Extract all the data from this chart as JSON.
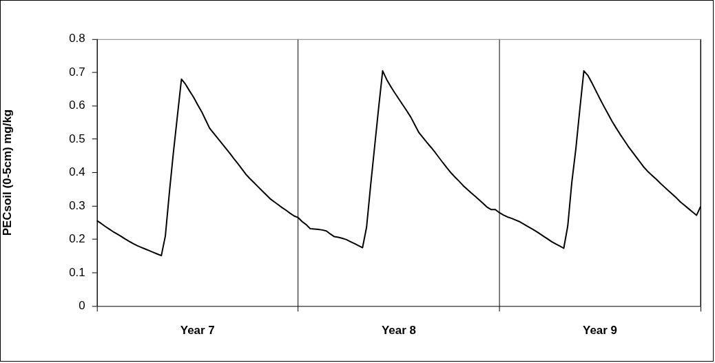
{
  "chart_data": {
    "type": "line",
    "ylabel": "PECsoil (0-5cm) mg/kg",
    "categories": [
      null,
      null,
      null,
      null,
      null,
      null,
      null,
      null,
      null,
      null,
      null,
      null,
      null,
      null,
      null,
      null,
      null,
      null,
      null,
      null,
      null,
      null,
      null,
      null,
      null,
      "Year 7",
      null,
      null,
      null,
      null,
      null,
      null,
      null,
      null,
      null,
      null,
      null,
      null,
      null,
      null,
      null,
      null,
      null,
      null,
      null,
      null,
      null,
      null,
      null,
      null,
      null,
      null,
      null,
      null,
      null,
      null,
      null,
      null,
      null,
      null,
      null,
      null,
      null,
      null,
      null,
      null,
      null,
      null,
      null,
      null,
      null,
      null,
      null,
      null,
      null,
      "Year 8",
      null,
      null,
      null,
      null,
      null,
      null,
      null,
      null,
      null,
      null,
      null,
      null,
      null,
      null,
      null,
      null,
      null,
      null,
      null,
      null,
      null,
      null,
      null,
      null,
      null,
      null,
      null,
      null,
      null,
      null,
      null,
      null,
      null,
      null,
      null,
      null,
      null,
      null,
      null,
      null,
      null,
      null,
      null,
      null,
      null,
      null,
      null,
      null,
      null,
      "Year 9",
      null,
      null,
      null,
      null,
      null,
      null,
      null,
      null,
      null,
      null,
      null,
      null,
      null,
      null,
      null,
      null,
      null,
      null,
      null,
      null,
      null,
      null,
      null,
      null,
      null
    ],
    "series": [
      {
        "color": "#000000",
        "values": [
          0.256,
          0.248,
          0.239,
          0.231,
          0.223,
          0.216,
          0.209,
          0.201,
          0.194,
          0.187,
          0.181,
          0.176,
          0.171,
          0.166,
          0.161,
          0.156,
          0.151,
          0.21,
          0.34,
          0.46,
          0.57,
          0.68,
          0.665,
          0.645,
          0.626,
          0.604,
          0.583,
          0.558,
          0.533,
          0.518,
          0.503,
          0.488,
          0.473,
          0.458,
          0.442,
          0.427,
          0.411,
          0.395,
          0.382,
          0.37,
          0.358,
          0.346,
          0.334,
          0.322,
          0.313,
          0.304,
          0.295,
          0.287,
          0.278,
          0.27,
          0.265,
          0.253,
          0.244,
          0.232,
          0.231,
          0.23,
          0.228,
          0.225,
          0.216,
          0.208,
          0.206,
          0.203,
          0.199,
          0.193,
          0.187,
          0.181,
          0.175,
          0.236,
          0.36,
          0.477,
          0.594,
          0.705,
          0.679,
          0.658,
          0.639,
          0.621,
          0.603,
          0.585,
          0.566,
          0.543,
          0.52,
          0.505,
          0.49,
          0.476,
          0.461,
          0.445,
          0.429,
          0.414,
          0.399,
          0.386,
          0.374,
          0.361,
          0.35,
          0.339,
          0.329,
          0.318,
          0.307,
          0.296,
          0.289,
          0.289,
          0.28,
          0.273,
          0.267,
          0.263,
          0.258,
          0.253,
          0.246,
          0.239,
          0.232,
          0.225,
          0.217,
          0.209,
          0.201,
          0.193,
          0.186,
          0.18,
          0.173,
          0.24,
          0.37,
          0.47,
          0.59,
          0.705,
          0.691,
          0.669,
          0.645,
          0.621,
          0.598,
          0.576,
          0.554,
          0.534,
          0.515,
          0.497,
          0.479,
          0.463,
          0.447,
          0.431,
          0.415,
          0.402,
          0.391,
          0.38,
          0.368,
          0.357,
          0.346,
          0.335,
          0.324,
          0.312,
          0.302,
          0.292,
          0.282,
          0.272,
          0.298
        ]
      }
    ],
    "ylim": [
      0,
      0.8
    ],
    "yticks": [
      0,
      0.1,
      0.2,
      0.3,
      0.4,
      0.5,
      0.6,
      0.7,
      0.8
    ],
    "grid": "x",
    "marker": "none",
    "line_style": "solid"
  }
}
